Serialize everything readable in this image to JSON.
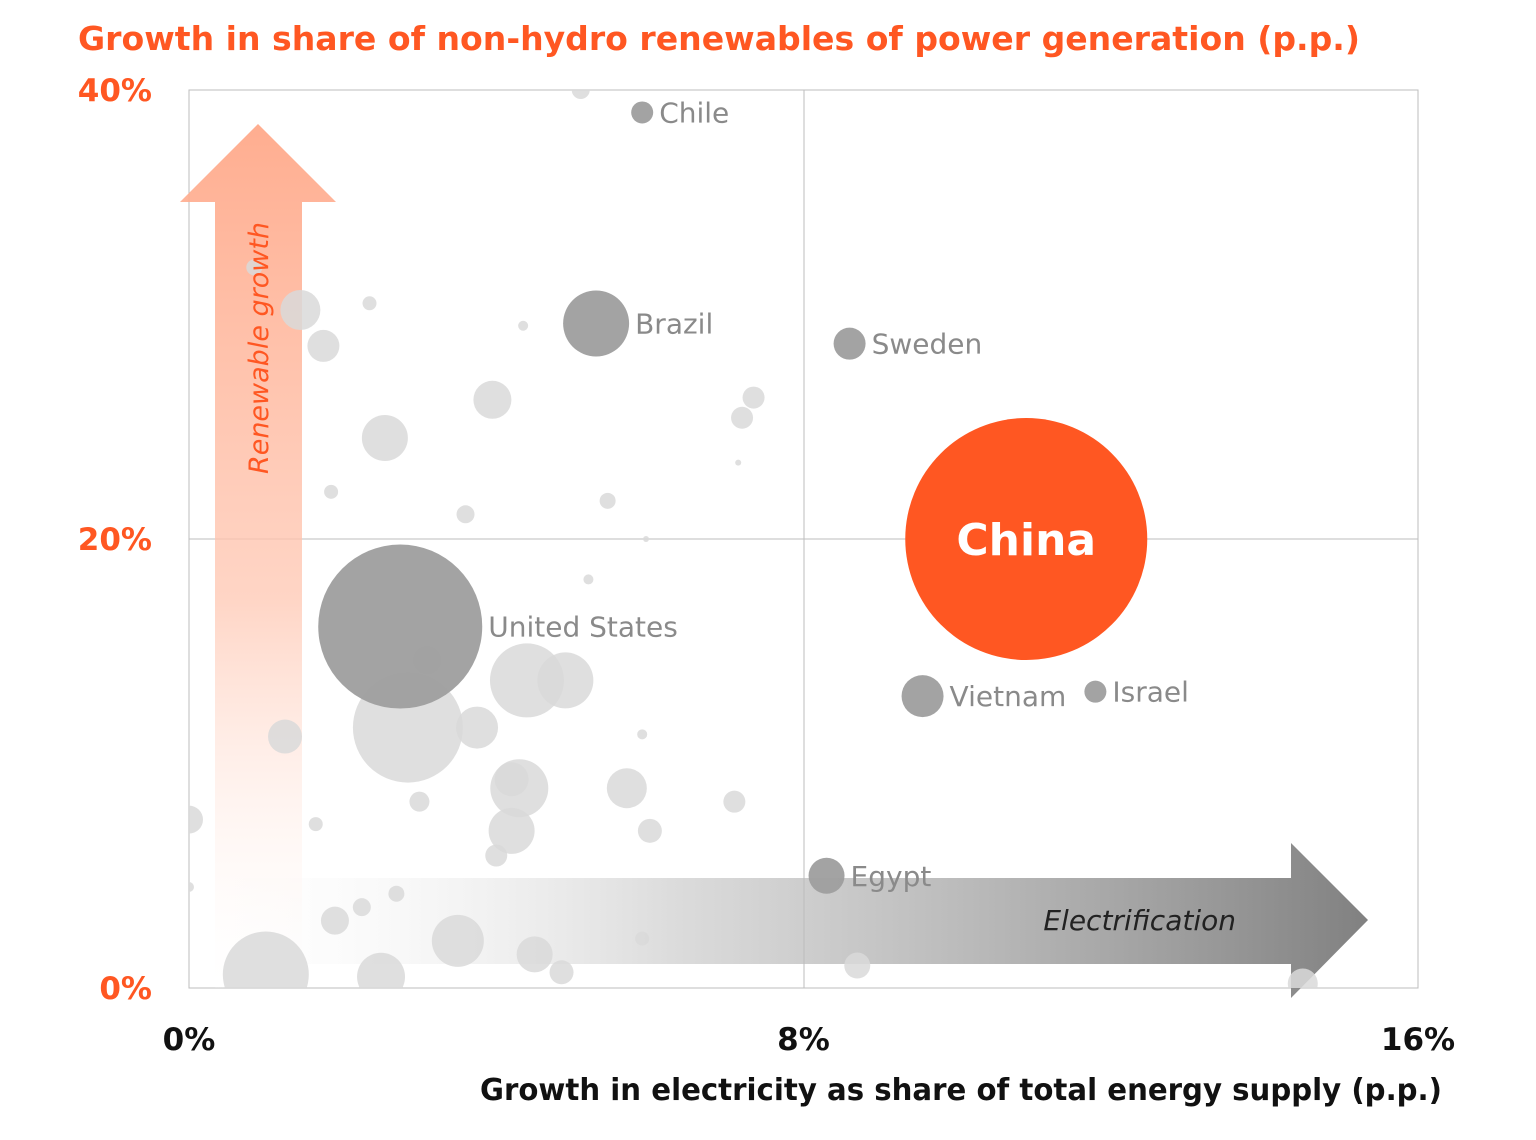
{
  "chart_data": {
    "type": "scatter",
    "title": "Growth in share of non-hydro renewables of power generation (p.p.)",
    "xlabel": "Growth in electricity as share of total energy supply (p.p.)",
    "ylabel": "",
    "xlim": [
      0,
      16
    ],
    "ylim": [
      0,
      40
    ],
    "x_ticks": [
      {
        "value": 0,
        "label": "0%"
      },
      {
        "value": 8,
        "label": "8%"
      },
      {
        "value": 16,
        "label": "16%"
      }
    ],
    "y_ticks": [
      {
        "value": 0,
        "label": "0%"
      },
      {
        "value": 20,
        "label": "20%"
      },
      {
        "value": 40,
        "label": "40%"
      }
    ],
    "grid": "lines at x=8 and y=20",
    "annotations": {
      "vertical_arrow": "Renewable growth",
      "horizontal_arrow": "Electrification"
    },
    "colors": {
      "accent": "#ff5722",
      "labeled": "#9e9e9e",
      "unlabeled": "#d9d9d9",
      "axis_text": "#111111",
      "point_label": "#8a8a8a"
    },
    "labeled_points": [
      {
        "name": "China",
        "x": 10.9,
        "y": 20.0,
        "r": 121,
        "highlight": true
      },
      {
        "name": "United States",
        "x": 2.75,
        "y": 16.1,
        "r": 82
      },
      {
        "name": "Brazil",
        "x": 5.3,
        "y": 29.6,
        "r": 33
      },
      {
        "name": "Chile",
        "x": 5.9,
        "y": 39.0,
        "r": 11
      },
      {
        "name": "Sweden",
        "x": 8.6,
        "y": 28.7,
        "r": 16
      },
      {
        "name": "Vietnam",
        "x": 9.55,
        "y": 13.0,
        "r": 21
      },
      {
        "name": "Israel",
        "x": 11.8,
        "y": 13.2,
        "r": 11
      },
      {
        "name": "Egypt",
        "x": 8.3,
        "y": 5.0,
        "r": 18
      }
    ],
    "other_points": [
      {
        "x": 2.85,
        "y": 11.6,
        "r": 55
      },
      {
        "x": 4.4,
        "y": 13.7,
        "r": 37
      },
      {
        "x": 4.9,
        "y": 13.7,
        "r": 28
      },
      {
        "x": 3.75,
        "y": 11.6,
        "r": 21
      },
      {
        "x": 1.45,
        "y": 30.2,
        "r": 20
      },
      {
        "x": 1.75,
        "y": 28.6,
        "r": 16
      },
      {
        "x": 2.55,
        "y": 24.5,
        "r": 23
      },
      {
        "x": 3.95,
        "y": 26.2,
        "r": 19
      },
      {
        "x": 7.35,
        "y": 26.3,
        "r": 11
      },
      {
        "x": 7.2,
        "y": 25.4,
        "r": 11
      },
      {
        "x": 2.35,
        "y": 30.5,
        "r": 7
      },
      {
        "x": 4.35,
        "y": 29.5,
        "r": 5
      },
      {
        "x": 1.85,
        "y": 22.1,
        "r": 7
      },
      {
        "x": 3.6,
        "y": 21.1,
        "r": 9
      },
      {
        "x": 5.45,
        "y": 21.7,
        "r": 8
      },
      {
        "x": 7.15,
        "y": 23.4,
        "r": 3
      },
      {
        "x": 5.95,
        "y": 20.0,
        "r": 3
      },
      {
        "x": 5.2,
        "y": 18.2,
        "r": 5
      },
      {
        "x": 1.25,
        "y": 11.2,
        "r": 17
      },
      {
        "x": 3.1,
        "y": 14.6,
        "r": 14
      },
      {
        "x": 4.3,
        "y": 8.9,
        "r": 29
      },
      {
        "x": 4.2,
        "y": 9.3,
        "r": 17
      },
      {
        "x": 4.2,
        "y": 7.0,
        "r": 23
      },
      {
        "x": 5.7,
        "y": 8.9,
        "r": 20
      },
      {
        "x": 6.0,
        "y": 7.0,
        "r": 12
      },
      {
        "x": 7.1,
        "y": 8.3,
        "r": 11
      },
      {
        "x": 5.9,
        "y": 11.3,
        "r": 5
      },
      {
        "x": 3.0,
        "y": 8.3,
        "r": 10
      },
      {
        "x": 1.65,
        "y": 7.3,
        "r": 7
      },
      {
        "x": 0.0,
        "y": 7.5,
        "r": 14
      },
      {
        "x": 4.0,
        "y": 5.9,
        "r": 11
      },
      {
        "x": 1.9,
        "y": 3.0,
        "r": 14
      },
      {
        "x": 2.25,
        "y": 3.6,
        "r": 9
      },
      {
        "x": 2.7,
        "y": 4.2,
        "r": 8
      },
      {
        "x": 0.0,
        "y": 4.5,
        "r": 5
      },
      {
        "x": 3.5,
        "y": 2.1,
        "r": 26
      },
      {
        "x": 4.5,
        "y": 1.5,
        "r": 18
      },
      {
        "x": 4.85,
        "y": 0.7,
        "r": 12
      },
      {
        "x": 5.9,
        "y": 2.2,
        "r": 7
      },
      {
        "x": 1.0,
        "y": 0.6,
        "r": 43
      },
      {
        "x": 2.5,
        "y": 0.5,
        "r": 24
      },
      {
        "x": 8.7,
        "y": 1.0,
        "r": 13
      },
      {
        "x": 14.5,
        "y": 0.2,
        "r": 15
      },
      {
        "x": 5.1,
        "y": 40.0,
        "r": 9
      },
      {
        "x": 0.85,
        "y": 32.1,
        "r": 8
      }
    ]
  }
}
